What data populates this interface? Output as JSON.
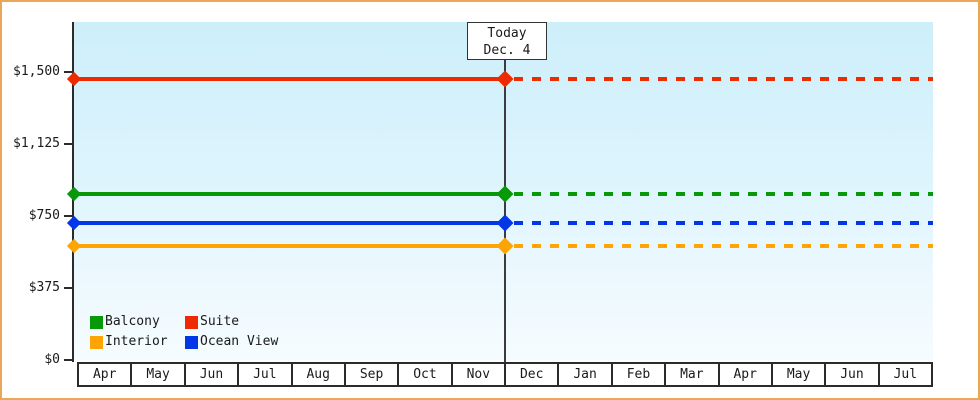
{
  "frame": {
    "border_color": "#e9a758"
  },
  "today_box": {
    "title": "Today",
    "date": "Dec. 4"
  },
  "legend": {
    "position": "bottom-left-inside-plot",
    "items": [
      {
        "label": "Balcony",
        "color": "#089908"
      },
      {
        "label": "Suite",
        "color": "#ee2a00"
      },
      {
        "label": "Interior",
        "color": "#ffa405"
      },
      {
        "label": "Ocean View",
        "color": "#0336e6"
      }
    ]
  },
  "chart_data": {
    "type": "line",
    "title": "",
    "xlabel": "",
    "ylabel": "",
    "x": [
      "Apr",
      "May",
      "Jun",
      "Jul",
      "Aug",
      "Sep",
      "Oct",
      "Nov",
      "Dec",
      "Jan",
      "Feb",
      "Mar",
      "Apr",
      "May",
      "Jun",
      "Jul"
    ],
    "series": [
      {
        "name": "Suite",
        "color": "#ee2a00",
        "values": [
          1465,
          1465,
          1465,
          1465,
          1465,
          1465,
          1465,
          1465,
          1465,
          1465,
          1465,
          1465,
          1465,
          1465,
          1465,
          1465
        ]
      },
      {
        "name": "Balcony",
        "color": "#089908",
        "values": [
          865,
          865,
          865,
          865,
          865,
          865,
          865,
          865,
          865,
          865,
          865,
          865,
          865,
          865,
          865,
          865
        ]
      },
      {
        "name": "Ocean View",
        "color": "#0336e6",
        "values": [
          715,
          715,
          715,
          715,
          715,
          715,
          715,
          715,
          715,
          715,
          715,
          715,
          715,
          715,
          715,
          715
        ]
      },
      {
        "name": "Interior",
        "color": "#ffa405",
        "values": [
          595,
          595,
          595,
          595,
          595,
          595,
          595,
          595,
          595,
          595,
          595,
          595,
          595,
          595,
          595,
          595
        ]
      }
    ],
    "y_ticks": [
      "$0",
      "$375",
      "$750",
      "$1,125",
      "$1,500"
    ],
    "ylim": [
      0,
      1500
    ],
    "today": {
      "label": "Today",
      "date": "Dec. 4",
      "x_index": 8,
      "position": "boundary between Nov and Dec"
    },
    "line_style": "solid before today, dashed after today",
    "markers": "diamond at axis start and at today line",
    "grid": false,
    "legend_position": "bottom-left inside plot"
  }
}
